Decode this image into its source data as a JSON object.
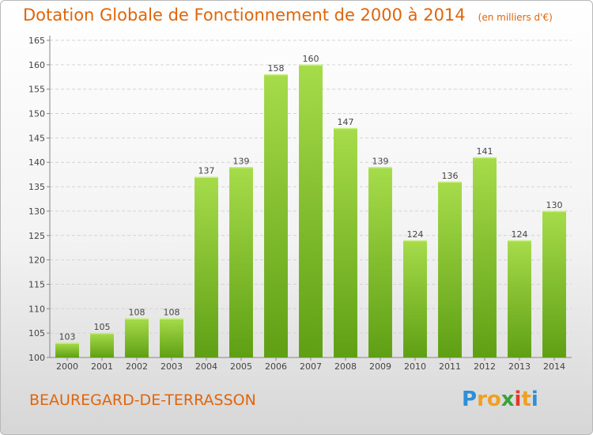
{
  "title": "Dotation Globale de Fonctionnement de 2000 à 2014",
  "subtitle": "(en milliers d'€)",
  "commune": "BEAUREGARD-DE-TERRASSON",
  "logo": {
    "letters": [
      "P",
      "r",
      "o",
      "x",
      "i",
      "t",
      "i"
    ],
    "colors": [
      "#2e8fd6",
      "#f0a020",
      "#f0a020",
      "#3aa23a",
      "#e23a2a",
      "#f0a020",
      "#2e8fd6"
    ]
  },
  "colors": {
    "accent": "#e0650a",
    "bar_light": "#a6dc4a",
    "bar_dark": "#5f9f14"
  },
  "chart_data": {
    "type": "bar",
    "categories": [
      "2000",
      "2001",
      "2002",
      "2003",
      "2004",
      "2005",
      "2006",
      "2007",
      "2008",
      "2009",
      "2010",
      "2011",
      "2012",
      "2013",
      "2014"
    ],
    "values": [
      103,
      105,
      108,
      108,
      137,
      139,
      158,
      160,
      147,
      139,
      124,
      136,
      141,
      124,
      130
    ],
    "ylim": [
      100,
      165
    ],
    "yticks": [
      100,
      105,
      110,
      115,
      120,
      125,
      130,
      135,
      140,
      145,
      150,
      155,
      160,
      165
    ],
    "grid": true,
    "legend": "none"
  }
}
